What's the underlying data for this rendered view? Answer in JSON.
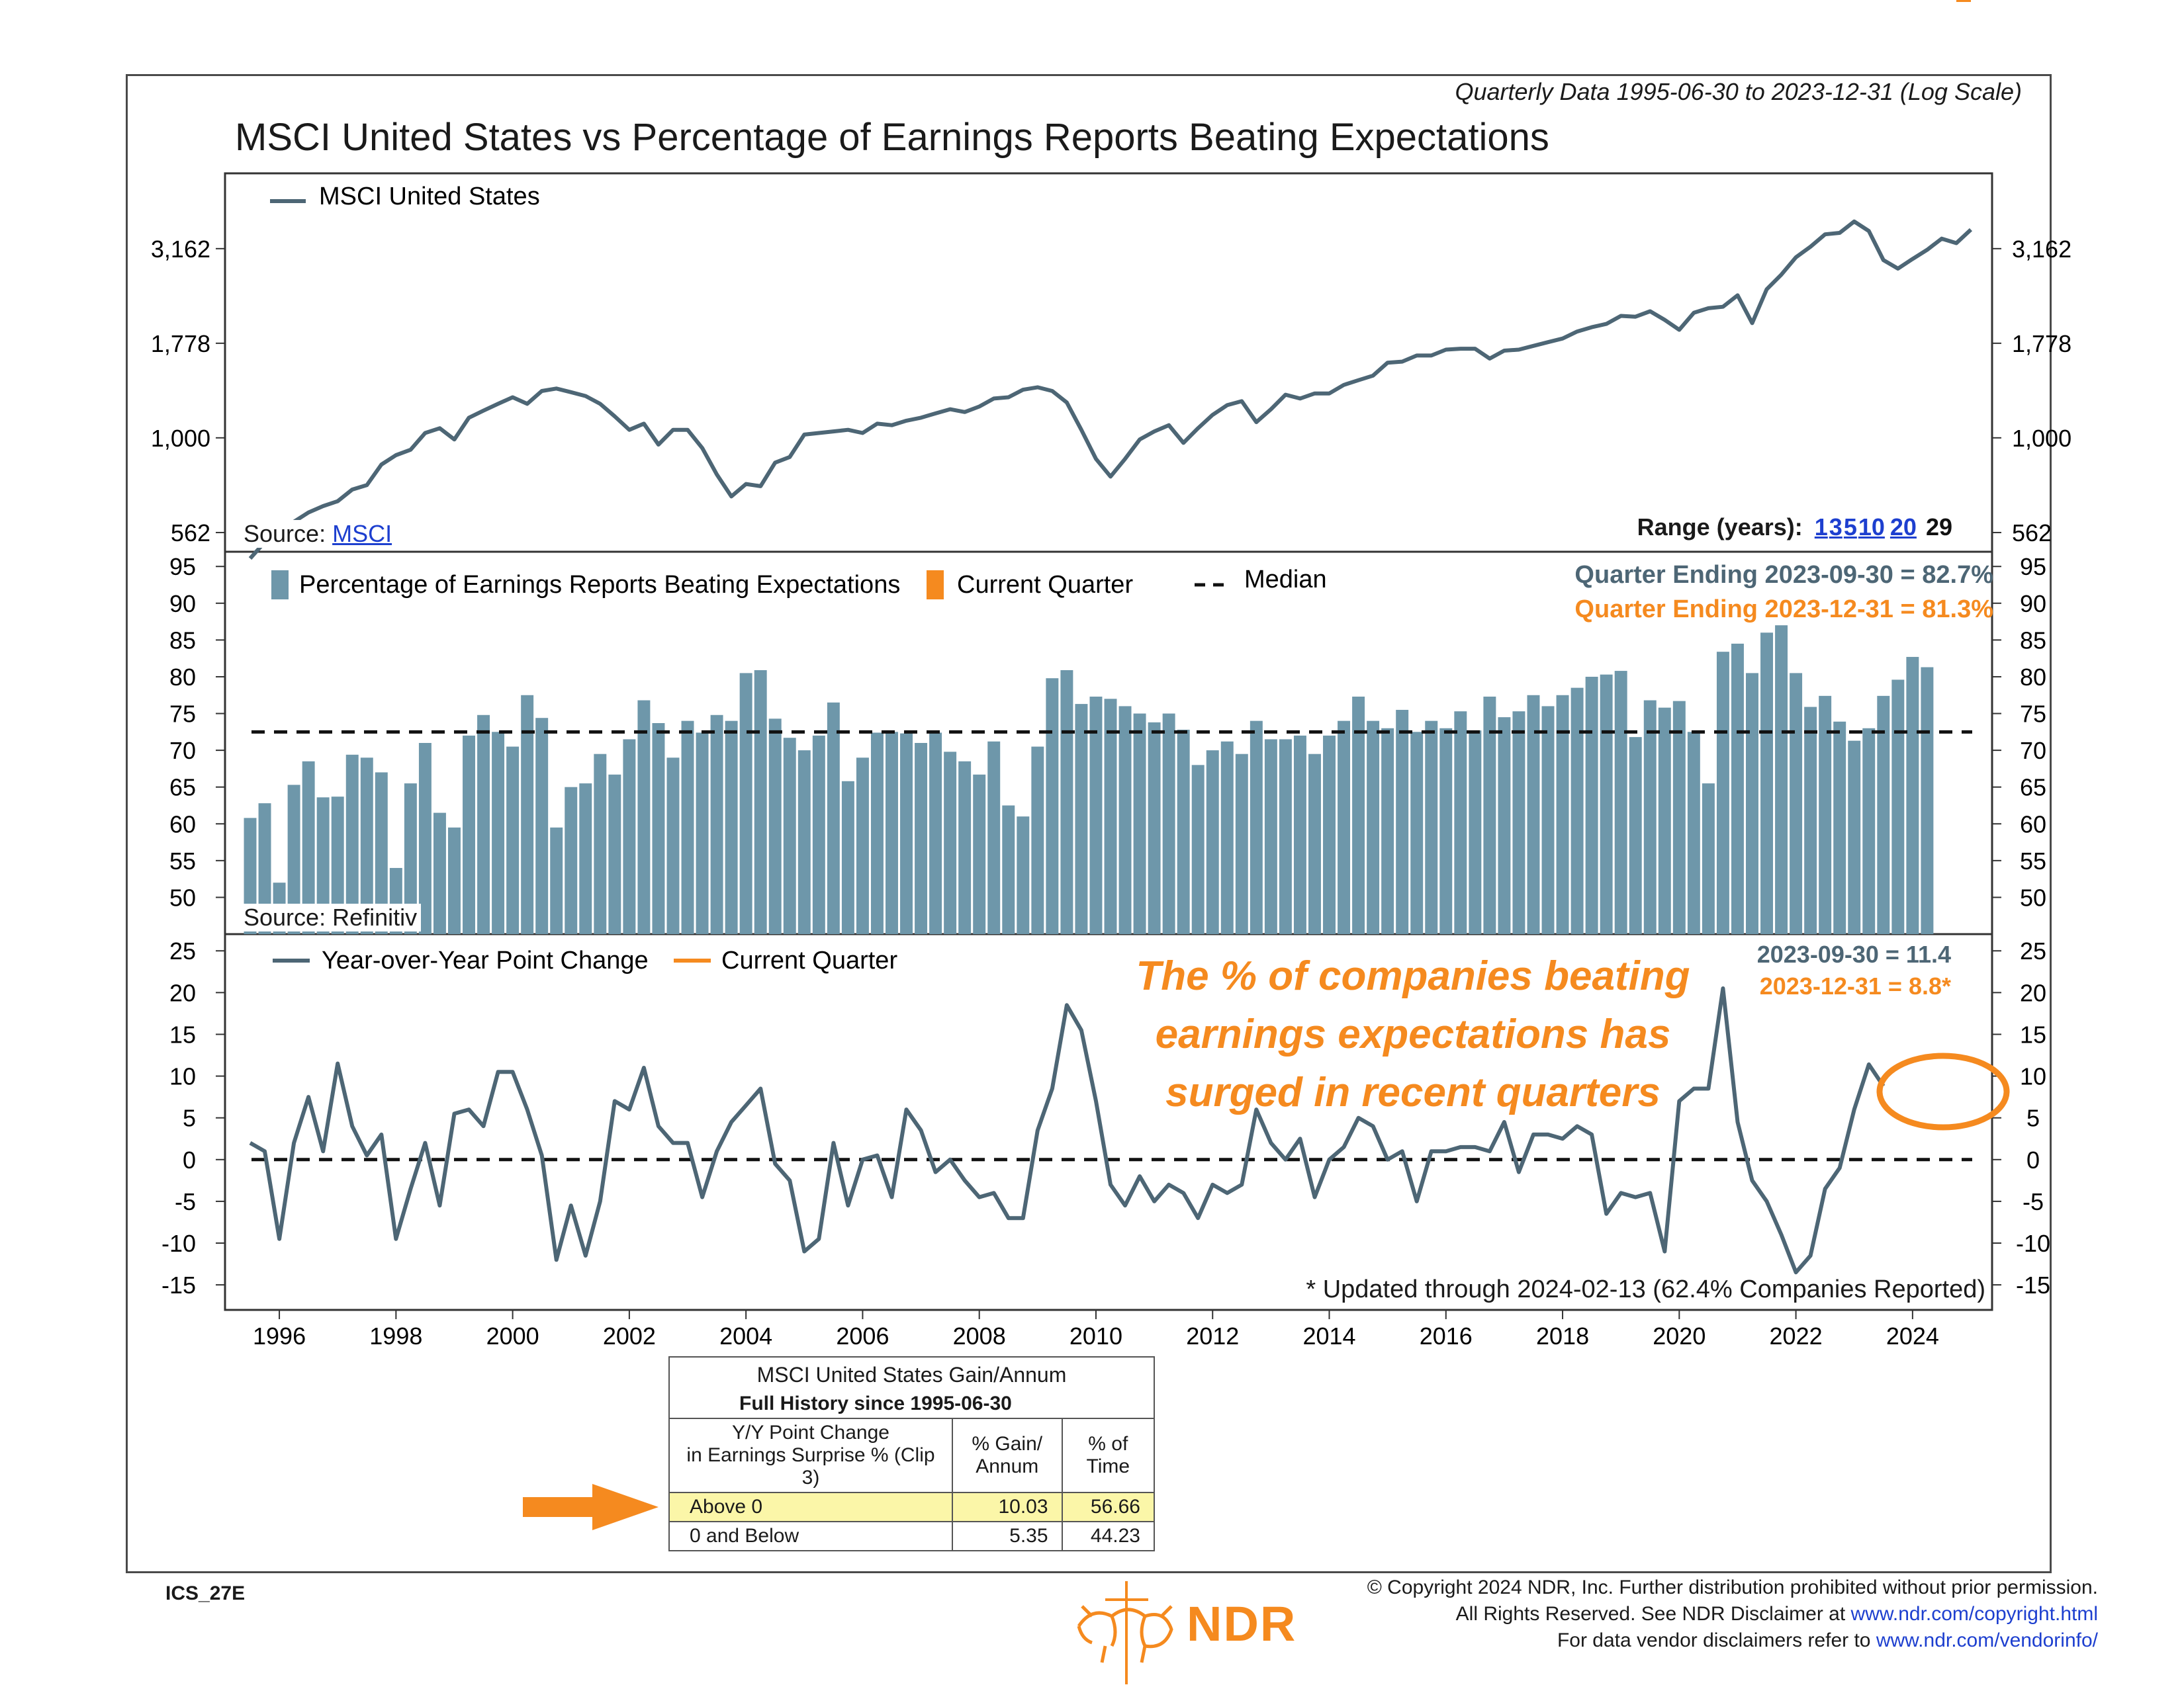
{
  "header": {
    "subtitle": "Quarterly Data 1995-06-30 to 2023-12-31 (Log Scale)",
    "title": "MSCI United States vs Percentage of Earnings Reports Beating Expectations"
  },
  "panel1": {
    "legend": "MSCI United States",
    "source_label": "Source: ",
    "source_link": "MSCI",
    "ticks": [
      "3,162",
      "1,778",
      "1,000",
      "562"
    ],
    "range_label": "Range (years):",
    "range_links": [
      "1",
      "3",
      "5",
      "10",
      "20"
    ],
    "range_current": "29"
  },
  "panel2": {
    "legend_bars": "Percentage of Earnings Reports Beating Expectations",
    "legend_current": "Current Quarter",
    "legend_median": "Median",
    "stat_q3": "Quarter Ending 2023-09-30 = 82.7%",
    "stat_q4": "Quarter Ending 2023-12-31 = 81.3%",
    "source": "Source: Refinitiv",
    "ticks": [
      "95",
      "90",
      "85",
      "80",
      "75",
      "70",
      "65",
      "60",
      "55",
      "50"
    ]
  },
  "panel3": {
    "legend_line": "Year-over-Year Point Change",
    "legend_current": "Current Quarter",
    "stat_q3": "2023-09-30 = 11.4",
    "stat_q4": "2023-12-31 = 8.8*",
    "annotation": "The % of companies beating earnings expectations has surged in recent quarters",
    "updated": "* Updated through 2024-02-13 (62.4% Companies Reported)",
    "ticks": [
      "25",
      "20",
      "15",
      "10",
      "5",
      "0",
      "-5",
      "-10",
      "-15"
    ]
  },
  "x_ticks": [
    "1996",
    "1998",
    "2000",
    "2002",
    "2004",
    "2006",
    "2008",
    "2010",
    "2012",
    "2014",
    "2016",
    "2018",
    "2020",
    "2022",
    "2024"
  ],
  "stats_table": {
    "title": "MSCI United States Gain/Annum",
    "subtitle": "Full History since 1995-06-30",
    "col1_header": "Y/Y Point Change\nin Earnings Surprise % (Clip 3)",
    "col2_header": "% Gain/\nAnnum",
    "col3_header": "% of\nTime",
    "rows": [
      {
        "label": "Above 0",
        "gain": "10.03",
        "time": "56.66"
      },
      {
        "label": "0 and Below",
        "gain": "5.35",
        "time": "44.23"
      }
    ]
  },
  "footer": {
    "code": "ICS_27E",
    "brand": "NDR",
    "copyright_line1": "© Copyright 2024 NDR, Inc. Further distribution prohibited without prior permission.",
    "copyright_line2_text": "All Rights Reserved. See NDR Disclaimer at ",
    "copyright_line2_link": "www.ndr.com/copyright.html",
    "copyright_line3_text": "For data vendor disclaimers refer to ",
    "copyright_line3_link": "www.ndr.com/vendorinfo/"
  },
  "colors": {
    "line": "#4d6675",
    "bar": "#6e97aa",
    "current": "#f58a1f",
    "highlight": "#fbf6a8",
    "link": "#1d3fcf"
  },
  "chart_data": [
    {
      "type": "line",
      "title": "MSCI United States",
      "scale": "log",
      "x_start": "1995-06-30",
      "frequency": "quarterly",
      "ylim": [
        500,
        5000
      ],
      "values": [
        480,
        530,
        565,
        600,
        635,
        660,
        680,
        730,
        750,
        850,
        900,
        930,
        1030,
        1060,
        990,
        1130,
        1180,
        1230,
        1280,
        1230,
        1330,
        1350,
        1320,
        1290,
        1230,
        1140,
        1050,
        1090,
        960,
        1050,
        1050,
        940,
        800,
        700,
        755,
        745,
        860,
        890,
        1020,
        1030,
        1040,
        1050,
        1030,
        1090,
        1080,
        1110,
        1130,
        1160,
        1190,
        1170,
        1210,
        1270,
        1280,
        1340,
        1360,
        1330,
        1240,
        1050,
        880,
        790,
        880,
        990,
        1040,
        1080,
        970,
        1060,
        1150,
        1220,
        1250,
        1100,
        1190,
        1300,
        1270,
        1310,
        1310,
        1380,
        1420,
        1460,
        1580,
        1590,
        1650,
        1650,
        1710,
        1720,
        1720,
        1620,
        1700,
        1710,
        1750,
        1790,
        1830,
        1910,
        1960,
        2000,
        2100,
        2090,
        2160,
        2050,
        1930,
        2140,
        2200,
        2220,
        2380,
        2010,
        2470,
        2700,
        3000,
        3200,
        3450,
        3480,
        3730,
        3520,
        2950,
        2800,
        2970,
        3140,
        3360,
        3270,
        3550
      ]
    },
    {
      "type": "bar",
      "title": "Percentage of Earnings Reports Beating Expectations",
      "x_start": "1995-06-30",
      "frequency": "quarterly",
      "ylim": [
        45,
        97
      ],
      "median": 72.5,
      "values": [
        60.8,
        62.8,
        52.0,
        65.3,
        68.5,
        63.6,
        63.7,
        69.4,
        69.0,
        67.0,
        54.0,
        65.5,
        71.0,
        61.5,
        59.5,
        72.0,
        74.8,
        72.5,
        70.5,
        77.5,
        74.4,
        59.5,
        65.0,
        65.5,
        69.5,
        66.7,
        71.5,
        76.8,
        73.7,
        69.0,
        74.0,
        72.4,
        74.8,
        74.0,
        80.5,
        80.9,
        74.3,
        71.7,
        70.0,
        72.0,
        76.5,
        65.8,
        69.0,
        72.4,
        72.5,
        72.3,
        71.0,
        72.4,
        69.8,
        68.5,
        66.7,
        71.2,
        62.5,
        61.0,
        70.5,
        79.8,
        80.9,
        76.3,
        77.3,
        77.0,
        76.0,
        75.0,
        73.8,
        75.0,
        72.8,
        68.0,
        70.0,
        71.2,
        69.5,
        74.0,
        71.5,
        71.5,
        72.0,
        69.5,
        72.0,
        74.0,
        77.3,
        74.0,
        73.0,
        75.5,
        72.5,
        74.0,
        73.0,
        75.3,
        72.7,
        77.3,
        74.5,
        75.3,
        77.5,
        76.0,
        77.5,
        78.5,
        80.0,
        80.3,
        80.8,
        71.8,
        76.8,
        75.8,
        76.7,
        72.5,
        65.5,
        83.4,
        84.5,
        80.5,
        86.0,
        87.0,
        80.5,
        75.9,
        77.4,
        73.9,
        71.3,
        73.0,
        77.4,
        79.6,
        82.7,
        81.3
      ]
    },
    {
      "type": "line",
      "title": "Year-over-Year Point Change",
      "x_start": "1995-06-30",
      "frequency": "quarterly",
      "ylim": [
        -18,
        27
      ],
      "reference_line": 0,
      "values": [
        2.0,
        1.0,
        -9.5,
        2.0,
        7.5,
        1.0,
        11.5,
        4.0,
        0.5,
        3.0,
        -9.5,
        -3.5,
        2.0,
        -5.5,
        5.5,
        6.0,
        4.0,
        10.5,
        10.5,
        6.0,
        0.5,
        -12.0,
        -5.5,
        -11.5,
        -5.0,
        7.0,
        6.0,
        11.0,
        4.0,
        2.0,
        2.0,
        -4.5,
        1.0,
        4.5,
        6.5,
        8.5,
        -0.5,
        -2.5,
        -11.0,
        -9.5,
        2.0,
        -5.5,
        0.0,
        0.5,
        -4.5,
        6.0,
        3.5,
        -1.5,
        0.0,
        -2.5,
        -4.5,
        -4.0,
        -7.0,
        -7.0,
        3.5,
        8.5,
        18.5,
        15.5,
        7.0,
        -3.0,
        -5.5,
        -2.0,
        -5.0,
        -3.0,
        -4.0,
        -7.0,
        -3.0,
        -4.0,
        -3.0,
        6.0,
        2.0,
        0.0,
        2.5,
        -4.5,
        0.0,
        1.5,
        5.0,
        4.0,
        0.0,
        1.0,
        -5.0,
        1.0,
        1.0,
        1.5,
        1.5,
        1.0,
        4.5,
        -1.5,
        3.0,
        3.0,
        2.5,
        4.0,
        3.0,
        -6.5,
        -4.0,
        -4.5,
        -4.0,
        -11.0,
        7.0,
        8.5,
        8.5,
        20.5,
        4.5,
        -2.5,
        -5.0,
        -9.0,
        -13.5,
        -11.5,
        -3.5,
        -1.0,
        6.0,
        11.4,
        8.8
      ]
    }
  ]
}
